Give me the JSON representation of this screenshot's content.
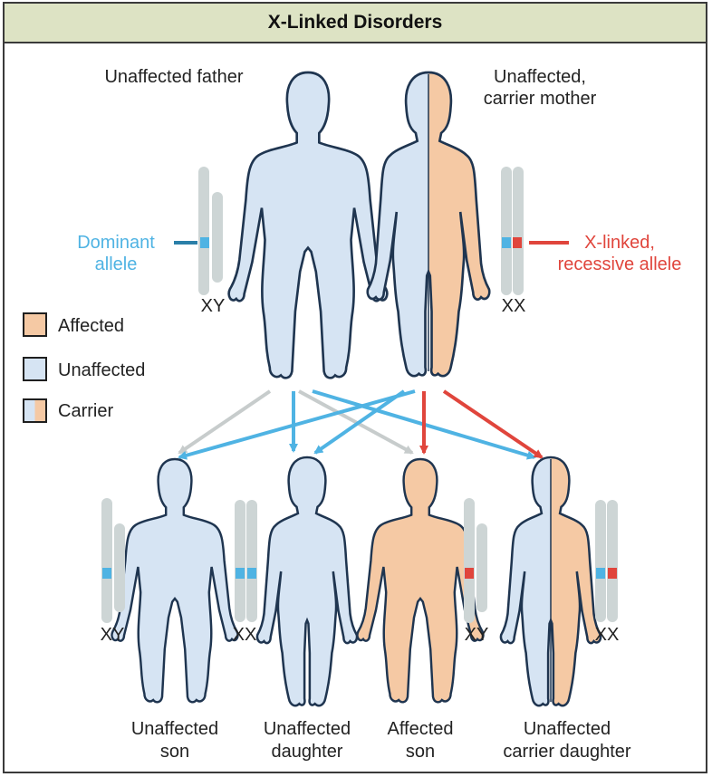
{
  "title": "X-Linked Disorders",
  "parents": {
    "father_label": "Unaffected father",
    "mother_label_line1": "Unaffected,",
    "mother_label_line2": "carrier mother",
    "father_chrom": "XY",
    "mother_chrom": "XX"
  },
  "alleles": {
    "dominant_line1": "Dominant",
    "dominant_line2": "allele",
    "recessive_line1": "X-linked,",
    "recessive_line2": "recessive allele"
  },
  "legend": [
    {
      "label": "Affected",
      "type": "affected"
    },
    {
      "label": "Unaffected",
      "type": "unaffected"
    },
    {
      "label": "Carrier",
      "type": "carrier"
    }
  ],
  "children": [
    {
      "chrom": "XY",
      "label_line1": "Unaffected",
      "label_line2": "son"
    },
    {
      "chrom": "XX",
      "label_line1": "Unaffected",
      "label_line2": "daughter"
    },
    {
      "chrom": "XY",
      "label_line1": "Affected",
      "label_line2": "son"
    },
    {
      "chrom": "XX",
      "label_line1": "Unaffected",
      "label_line2": "carrier daughter"
    }
  ],
  "colors": {
    "unaffected": "#d6e4f3",
    "affected": "#f5c9a4",
    "outline": "#1f3550",
    "dominant": "#4fb3e3",
    "recessive": "#e0453c",
    "chromosome": "#cdd5d5",
    "gray_arrow": "#c7cccc"
  }
}
